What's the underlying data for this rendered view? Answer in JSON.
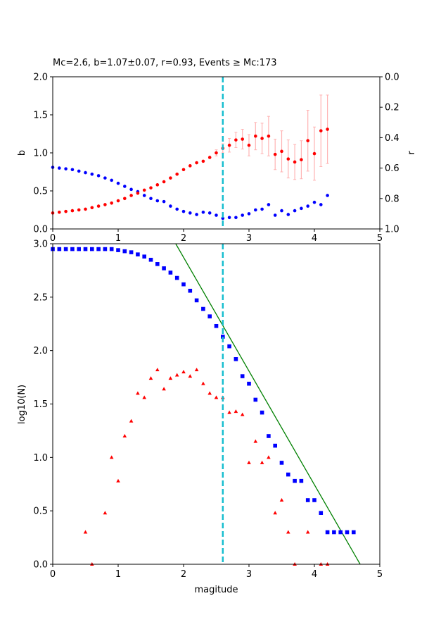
{
  "chart_data": [
    {
      "type": "scatter",
      "title": "Mc=2.6, b=1.07±0.07, r=0.93, Events ≥ Mc:173",
      "xlabel": "",
      "ylabel": "b",
      "y2label": "r",
      "xlim": [
        0,
        5
      ],
      "ylim": [
        0,
        2.0
      ],
      "y2lim": [
        1.0,
        0.0
      ],
      "xticks": [
        "0",
        "1",
        "2",
        "3",
        "4",
        "5"
      ],
      "yticks": [
        "0.0",
        "0.5",
        "1.0",
        "1.5",
        "2.0"
      ],
      "y2ticks": [
        "0.0",
        "0.2",
        "0.4",
        "0.6",
        "0.8",
        "1.0"
      ],
      "vline": 2.6,
      "vline_color": "#17becf",
      "colors": {
        "b": "#ff0000",
        "b_err": "#ffb3b3",
        "r": "#0000ff"
      },
      "series": [
        {
          "axis": "left",
          "x": [
            0.0,
            0.1,
            0.2,
            0.3,
            0.4,
            0.5,
            0.6,
            0.7,
            0.8,
            0.9,
            1.0,
            1.1,
            1.2,
            1.3,
            1.4,
            1.5,
            1.6,
            1.7,
            1.8,
            1.9,
            2.0,
            2.1,
            2.2,
            2.3,
            2.4,
            2.5,
            2.6,
            2.7,
            2.8,
            2.9,
            3.0,
            3.1,
            3.2,
            3.3,
            3.4,
            3.5,
            3.6,
            3.7,
            3.8,
            3.9,
            4.0,
            4.1,
            4.2
          ],
          "values": [
            0.21,
            0.22,
            0.23,
            0.24,
            0.25,
            0.26,
            0.28,
            0.3,
            0.32,
            0.34,
            0.37,
            0.4,
            0.44,
            0.47,
            0.51,
            0.54,
            0.58,
            0.62,
            0.67,
            0.72,
            0.78,
            0.83,
            0.87,
            0.89,
            0.94,
            1.0,
            1.06,
            1.1,
            1.17,
            1.18,
            1.1,
            1.22,
            1.19,
            1.22,
            0.98,
            1.02,
            0.92,
            0.88,
            0.91,
            1.16,
            0.99,
            1.29,
            1.31
          ],
          "errors": [
            0,
            0,
            0,
            0,
            0,
            0,
            0,
            0,
            0,
            0,
            0,
            0,
            0,
            0,
            0,
            0,
            0,
            0,
            0,
            0,
            0,
            0,
            0,
            0,
            0,
            0.04,
            0.06,
            0.09,
            0.1,
            0.13,
            0.14,
            0.18,
            0.2,
            0.26,
            0.2,
            0.27,
            0.25,
            0.23,
            0.25,
            0.4,
            0.35,
            0.47,
            0.45
          ]
        },
        {
          "axis": "right",
          "x": [
            0.0,
            0.1,
            0.2,
            0.3,
            0.4,
            0.5,
            0.6,
            0.7,
            0.8,
            0.9,
            1.0,
            1.1,
            1.2,
            1.3,
            1.4,
            1.5,
            1.6,
            1.7,
            1.8,
            1.9,
            2.0,
            2.1,
            2.2,
            2.3,
            2.4,
            2.5,
            2.6,
            2.7,
            2.8,
            2.9,
            3.0,
            3.1,
            3.2,
            3.3,
            3.4,
            3.5,
            3.6,
            3.7,
            3.8,
            3.9,
            4.0,
            4.1,
            4.2
          ],
          "values": [
            0.595,
            0.6,
            0.605,
            0.61,
            0.62,
            0.63,
            0.64,
            0.65,
            0.665,
            0.68,
            0.7,
            0.72,
            0.74,
            0.755,
            0.78,
            0.8,
            0.815,
            0.82,
            0.85,
            0.87,
            0.885,
            0.895,
            0.905,
            0.89,
            0.895,
            0.91,
            0.93,
            0.925,
            0.925,
            0.91,
            0.9,
            0.875,
            0.87,
            0.84,
            0.91,
            0.88,
            0.905,
            0.88,
            0.865,
            0.85,
            0.825,
            0.84,
            0.78
          ]
        }
      ]
    },
    {
      "type": "scatter",
      "title": "",
      "xlabel": "magitude",
      "ylabel": "log10(N)",
      "xlim": [
        0,
        5
      ],
      "ylim": [
        0,
        3.0
      ],
      "xticks": [
        "0",
        "1",
        "2",
        "3",
        "4",
        "5"
      ],
      "yticks": [
        "0.0",
        "0.5",
        "1.0",
        "1.5",
        "2.0",
        "2.5",
        "3.0"
      ],
      "vline": 2.6,
      "vline_color": "#17becf",
      "colors": {
        "cumulative": "#0000ff",
        "noncumulative": "#ff0000",
        "fit": "#008000"
      },
      "fit_line": {
        "x": [
          1.88,
          4.7
        ],
        "y": [
          3.0,
          0.0
        ]
      },
      "series": [
        {
          "marker": "square",
          "x": [
            0.0,
            0.1,
            0.2,
            0.3,
            0.4,
            0.5,
            0.6,
            0.7,
            0.8,
            0.9,
            1.0,
            1.1,
            1.2,
            1.3,
            1.4,
            1.5,
            1.6,
            1.7,
            1.8,
            1.9,
            2.0,
            2.1,
            2.2,
            2.3,
            2.4,
            2.5,
            2.6,
            2.7,
            2.8,
            2.9,
            3.0,
            3.1,
            3.2,
            3.3,
            3.4,
            3.5,
            3.6,
            3.7,
            3.8,
            3.9,
            4.0,
            4.1,
            4.2,
            4.3,
            4.4,
            4.5,
            4.6
          ],
          "values": [
            2.95,
            2.95,
            2.95,
            2.95,
            2.95,
            2.95,
            2.95,
            2.95,
            2.95,
            2.95,
            2.94,
            2.93,
            2.92,
            2.9,
            2.88,
            2.85,
            2.81,
            2.77,
            2.73,
            2.68,
            2.62,
            2.56,
            2.47,
            2.39,
            2.32,
            2.23,
            2.13,
            2.04,
            1.92,
            1.76,
            1.69,
            1.54,
            1.42,
            1.2,
            1.11,
            0.95,
            0.84,
            0.78,
            0.78,
            0.6,
            0.6,
            0.48,
            0.3,
            0.3,
            0.3,
            0.3,
            0.3
          ]
        },
        {
          "marker": "triangle",
          "x": [
            0.5,
            0.6,
            0.8,
            0.9,
            1.0,
            1.1,
            1.2,
            1.3,
            1.4,
            1.5,
            1.6,
            1.7,
            1.8,
            1.9,
            2.0,
            2.1,
            2.2,
            2.3,
            2.4,
            2.5,
            2.6,
            2.7,
            2.8,
            2.9,
            3.0,
            3.1,
            3.2,
            3.3,
            3.4,
            3.5,
            3.6,
            3.7,
            3.9,
            4.1,
            4.2
          ],
          "values": [
            0.3,
            0.0,
            0.48,
            1.0,
            0.78,
            1.2,
            1.34,
            1.6,
            1.56,
            1.74,
            1.82,
            1.64,
            1.74,
            1.77,
            1.8,
            1.76,
            1.82,
            1.69,
            1.6,
            1.56,
            1.56,
            1.42,
            1.43,
            1.4,
            0.95,
            1.15,
            0.95,
            1.0,
            0.48,
            0.6,
            0.3,
            0.0,
            0.3,
            0.0,
            0.0
          ]
        }
      ]
    }
  ]
}
